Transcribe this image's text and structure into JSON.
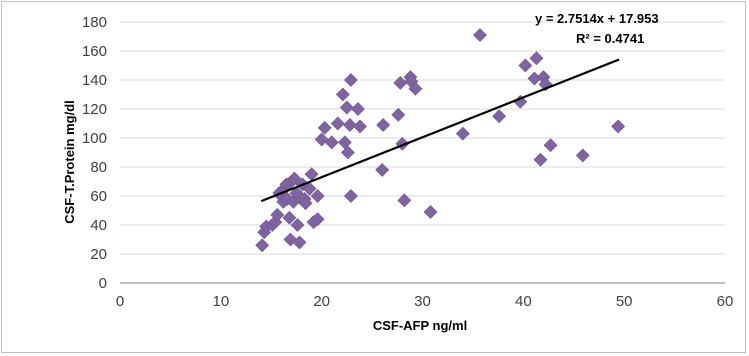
{
  "chart_data": {
    "type": "scatter",
    "title": "",
    "xlabel": "CSF-AFP ng/ml",
    "ylabel": "CSF-T.Protein mg/dl",
    "xlim": [
      0,
      60
    ],
    "ylim": [
      0,
      180
    ],
    "xticks": [
      "0",
      "10",
      "20",
      "30",
      "40",
      "50",
      "60"
    ],
    "yticks": [
      "0",
      "20",
      "40",
      "60",
      "80",
      "100",
      "120",
      "140",
      "160",
      "180"
    ],
    "grid": "horizontal",
    "marker_color": "#8064A2",
    "trendline": {
      "slope": 2.7514,
      "intercept": 17.953,
      "x_range": [
        14,
        49.5
      ],
      "color": "#000000",
      "equation": "y = 2.7514x + 17.953",
      "r_squared": "R² = 0.4741"
    },
    "points": [
      {
        "x": 14.1,
        "y": 26
      },
      {
        "x": 14.3,
        "y": 35
      },
      {
        "x": 14.5,
        "y": 39
      },
      {
        "x": 15.1,
        "y": 40
      },
      {
        "x": 15.4,
        "y": 42
      },
      {
        "x": 15.6,
        "y": 47
      },
      {
        "x": 15.8,
        "y": 62
      },
      {
        "x": 16.0,
        "y": 60
      },
      {
        "x": 16.2,
        "y": 56
      },
      {
        "x": 16.3,
        "y": 65
      },
      {
        "x": 16.5,
        "y": 68
      },
      {
        "x": 16.6,
        "y": 58
      },
      {
        "x": 16.8,
        "y": 45
      },
      {
        "x": 17.0,
        "y": 70
      },
      {
        "x": 17.2,
        "y": 56
      },
      {
        "x": 17.3,
        "y": 72
      },
      {
        "x": 17.5,
        "y": 62
      },
      {
        "x": 17.6,
        "y": 40
      },
      {
        "x": 16.9,
        "y": 30
      },
      {
        "x": 17.8,
        "y": 28
      },
      {
        "x": 18.1,
        "y": 68
      },
      {
        "x": 18.3,
        "y": 58
      },
      {
        "x": 18.4,
        "y": 55
      },
      {
        "x": 18.8,
        "y": 65
      },
      {
        "x": 19.0,
        "y": 75
      },
      {
        "x": 19.2,
        "y": 42
      },
      {
        "x": 19.6,
        "y": 44
      },
      {
        "x": 19.6,
        "y": 60
      },
      {
        "x": 20.0,
        "y": 99
      },
      {
        "x": 20.3,
        "y": 107
      },
      {
        "x": 21.0,
        "y": 97
      },
      {
        "x": 21.6,
        "y": 110
      },
      {
        "x": 22.1,
        "y": 130
      },
      {
        "x": 22.3,
        "y": 97
      },
      {
        "x": 22.5,
        "y": 121
      },
      {
        "x": 22.6,
        "y": 90
      },
      {
        "x": 22.8,
        "y": 109
      },
      {
        "x": 22.9,
        "y": 140
      },
      {
        "x": 22.9,
        "y": 60
      },
      {
        "x": 23.6,
        "y": 120
      },
      {
        "x": 23.8,
        "y": 108
      },
      {
        "x": 26.0,
        "y": 78
      },
      {
        "x": 26.1,
        "y": 109
      },
      {
        "x": 27.6,
        "y": 116
      },
      {
        "x": 27.8,
        "y": 138
      },
      {
        "x": 28.0,
        "y": 96
      },
      {
        "x": 28.2,
        "y": 57
      },
      {
        "x": 28.8,
        "y": 142
      },
      {
        "x": 28.9,
        "y": 139
      },
      {
        "x": 29.3,
        "y": 134
      },
      {
        "x": 30.8,
        "y": 49
      },
      {
        "x": 34.0,
        "y": 103
      },
      {
        "x": 35.7,
        "y": 171
      },
      {
        "x": 37.6,
        "y": 115
      },
      {
        "x": 39.7,
        "y": 125
      },
      {
        "x": 40.2,
        "y": 150
      },
      {
        "x": 41.1,
        "y": 141
      },
      {
        "x": 41.3,
        "y": 155
      },
      {
        "x": 41.7,
        "y": 85
      },
      {
        "x": 42.0,
        "y": 142
      },
      {
        "x": 42.2,
        "y": 137
      },
      {
        "x": 42.7,
        "y": 95
      },
      {
        "x": 45.9,
        "y": 88
      },
      {
        "x": 49.4,
        "y": 108
      }
    ]
  }
}
